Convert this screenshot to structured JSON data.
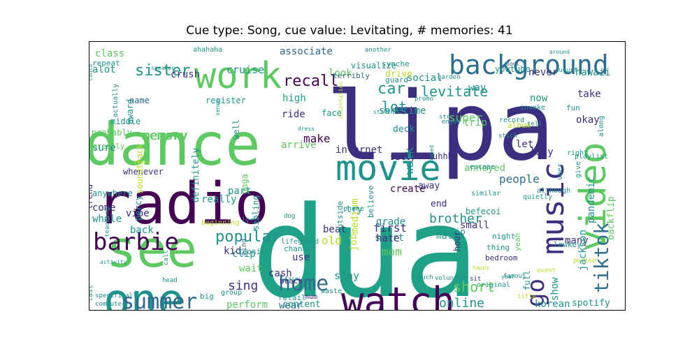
{
  "title": "Cue type: Song, cue value: Levitating, # memories: 41",
  "palette": {
    "darkpurple": "#440154",
    "indigo": "#3b2f7f",
    "blue": "#31688e",
    "steel": "#2e6e8e",
    "teal": "#21918c",
    "green": "#1fa187",
    "lightgreen": "#5ec962",
    "lime": "#b5de2b",
    "yellow": "#fde725"
  },
  "words": [
    {
      "text": "dua",
      "c": "green"
    },
    {
      "text": "lipa",
      "c": "indigo"
    },
    {
      "text": "dance",
      "c": "lightgreen"
    },
    {
      "text": "radio",
      "c": "darkpurple"
    },
    {
      "text": "see",
      "c": "lightgreen"
    },
    {
      "text": "one",
      "c": "teal"
    },
    {
      "text": "movie",
      "c": "teal"
    },
    {
      "text": "watch",
      "c": "darkpurple"
    },
    {
      "text": "music",
      "c": "indigo"
    },
    {
      "text": "video",
      "c": "lightgreen"
    },
    {
      "text": "work",
      "c": "lightgreen"
    },
    {
      "text": "background",
      "c": "steel"
    },
    {
      "text": "barbie",
      "c": "darkpurple"
    },
    {
      "text": "summer",
      "c": "blue"
    },
    {
      "text": "home",
      "c": "blue"
    },
    {
      "text": "tiktok",
      "c": "steel"
    },
    {
      "text": "go",
      "c": "indigo"
    },
    {
      "text": "popular",
      "c": "teal"
    },
    {
      "text": "sister",
      "c": "teal"
    },
    {
      "text": "recall",
      "c": "darkpurple"
    },
    {
      "text": "levitate",
      "c": "teal"
    },
    {
      "text": "car",
      "c": "teal"
    },
    {
      "text": "lot",
      "c": "teal"
    },
    {
      "text": "memory",
      "c": "lightgreen"
    },
    {
      "text": "sing",
      "c": "indigo"
    },
    {
      "text": "short",
      "c": "lightgreen"
    },
    {
      "text": "online",
      "c": "teal"
    },
    {
      "text": "brother",
      "c": "teal"
    },
    {
      "text": "make",
      "c": "darkpurple"
    },
    {
      "text": "walk",
      "c": "teal"
    },
    {
      "text": "people",
      "c": "steel"
    },
    {
      "text": "first",
      "c": "indigo"
    },
    {
      "text": "super",
      "c": "lightgreen"
    },
    {
      "text": "cruise",
      "c": "teal"
    },
    {
      "text": "associate",
      "c": "blue"
    },
    {
      "text": "crush",
      "c": "indigo"
    },
    {
      "text": "high",
      "c": "green"
    },
    {
      "text": "ride",
      "c": "indigo"
    },
    {
      "text": "internet",
      "c": "indigo"
    },
    {
      "text": "create",
      "c": "darkpurple"
    },
    {
      "text": "grade",
      "c": "teal"
    },
    {
      "text": "start",
      "c": "teal"
    },
    {
      "text": "mom",
      "c": "lightgreen"
    },
    {
      "text": "old",
      "c": "lime"
    },
    {
      "text": "beat",
      "c": "indigo"
    },
    {
      "text": "stay",
      "c": "teal"
    },
    {
      "text": "wear",
      "c": "blue"
    },
    {
      "text": "perform",
      "c": "lightgreen"
    },
    {
      "text": "class",
      "c": "lightgreen"
    },
    {
      "text": "social",
      "c": "teal"
    },
    {
      "text": "look",
      "c": "lightgreen"
    },
    {
      "text": "sometime",
      "c": "teal"
    },
    {
      "text": "way",
      "c": "teal"
    },
    {
      "text": "let",
      "c": "indigo"
    },
    {
      "text": "trip",
      "c": "lightgreen"
    },
    {
      "text": "lady",
      "c": "indigo"
    },
    {
      "text": "never",
      "c": "indigo"
    },
    {
      "text": "hawaii",
      "c": "teal"
    },
    {
      "text": "now",
      "c": "teal"
    },
    {
      "text": "alot",
      "c": "teal"
    },
    {
      "text": "sure",
      "c": "teal"
    },
    {
      "text": "come",
      "c": "indigo"
    },
    {
      "text": "whole",
      "c": "teal"
    },
    {
      "text": "back",
      "c": "teal"
    },
    {
      "text": "part",
      "c": "teal"
    },
    {
      "text": "really",
      "c": "teal"
    },
    {
      "text": "clip",
      "c": "teal"
    },
    {
      "text": "use",
      "c": "indigo"
    },
    {
      "text": "hate",
      "c": "indigo"
    },
    {
      "text": "many",
      "c": "indigo"
    },
    {
      "text": "show",
      "c": "teal"
    },
    {
      "text": "small",
      "c": "indigo"
    },
    {
      "text": "korean",
      "c": "teal"
    },
    {
      "text": "spotify",
      "c": "teal"
    },
    {
      "text": "okay",
      "c": "indigo"
    },
    {
      "text": "take",
      "c": "indigo"
    },
    {
      "text": "backflip",
      "c": "lightgreen"
    },
    {
      "text": "pandemic",
      "c": "teal"
    },
    {
      "text": "jackson",
      "c": "teal"
    },
    {
      "text": "annoyed",
      "c": "lightgreen"
    },
    {
      "text": "vibe",
      "c": "indigo"
    },
    {
      "text": "cash",
      "c": "indigo"
    },
    {
      "text": "wait",
      "c": "lightgreen"
    },
    {
      "text": "kid",
      "c": "indigo"
    },
    {
      "text": "memory",
      "c": "lightgreen"
    },
    {
      "text": "content",
      "c": "teal"
    },
    {
      "text": "drive",
      "c": "lime"
    },
    {
      "text": "youtube",
      "c": "teal"
    },
    {
      "text": "definitely",
      "c": "teal"
    },
    {
      "text": "medium",
      "c": "lime"
    },
    {
      "text": "job",
      "c": "lime"
    },
    {
      "text": "match",
      "c": "teal"
    },
    {
      "text": "end",
      "c": "indigo"
    },
    {
      "text": "away",
      "c": "indigo"
    },
    {
      "text": "lip",
      "c": "teal"
    },
    {
      "text": "try",
      "c": "teal"
    },
    {
      "text": "befecoi",
      "c": "teal"
    },
    {
      "text": "uhhh",
      "c": "indigo"
    },
    {
      "text": "silly",
      "c": "indigo"
    },
    {
      "text": "deck",
      "c": "teal"
    },
    {
      "text": "face",
      "c": "teal"
    },
    {
      "text": "arrive",
      "c": "lightgreen"
    },
    {
      "text": "gaga",
      "c": "lightgreen"
    },
    {
      "text": "sibling",
      "c": "teal"
    },
    {
      "text": "middle",
      "c": "teal"
    },
    {
      "text": "award",
      "c": "teal"
    },
    {
      "text": "register",
      "c": "teal"
    },
    {
      "text": "well",
      "c": "teal"
    },
    {
      "text": "probably",
      "c": "lightgreen"
    },
    {
      "text": "greatly",
      "c": "lightgreen"
    },
    {
      "text": "whenever",
      "c": "indigo"
    },
    {
      "text": "soundtrack",
      "c": "lime"
    },
    {
      "text": "trend",
      "c": "indigo"
    },
    {
      "text": "anywhere",
      "c": "teal"
    },
    {
      "text": "percy",
      "c": "teal"
    },
    {
      "text": "name",
      "c": "blue"
    },
    {
      "text": "terribly",
      "c": "blue"
    },
    {
      "text": "visualize",
      "c": "teal"
    },
    {
      "text": "synche",
      "c": "teal"
    },
    {
      "text": "guard",
      "c": "teal"
    },
    {
      "text": "pool",
      "c": "blue"
    },
    {
      "text": "repeat",
      "c": "teal"
    },
    {
      "text": "ahahaha",
      "c": "teal"
    },
    {
      "text": "outside",
      "c": "teal"
    },
    {
      "text": "believe",
      "c": "teal"
    },
    {
      "text": "mind",
      "c": "blue"
    },
    {
      "text": "iconic",
      "c": "teal"
    },
    {
      "text": "channel",
      "c": "teal"
    },
    {
      "text": "lifeguard",
      "c": "teal"
    },
    {
      "text": "night",
      "c": "teal"
    },
    {
      "text": "bedroom",
      "c": "indigo"
    },
    {
      "text": "thing",
      "c": "teal"
    },
    {
      "text": "hour",
      "c": "indigo"
    },
    {
      "text": "yeah",
      "c": "lightgreen"
    },
    {
      "text": "lowkey",
      "c": "teal"
    },
    {
      "text": "full",
      "c": "teal"
    },
    {
      "text": "retail",
      "c": "teal"
    },
    {
      "text": "beach",
      "c": "indigo"
    },
    {
      "text": "waste",
      "c": "teal"
    },
    {
      "text": "mum",
      "c": "indigo"
    },
    {
      "text": "sit",
      "c": "indigo"
    },
    {
      "text": "much",
      "c": "teal"
    },
    {
      "text": "original",
      "c": "teal"
    },
    {
      "text": "volunteer",
      "c": "teal"
    },
    {
      "text": "famous",
      "c": "teal"
    },
    {
      "text": "last",
      "c": "teal"
    },
    {
      "text": "specifically",
      "c": "teal"
    },
    {
      "text": "computer",
      "c": "teal"
    },
    {
      "text": "big",
      "c": "teal"
    },
    {
      "text": "group",
      "c": "teal"
    },
    {
      "text": "call",
      "c": "teal"
    },
    {
      "text": "activity",
      "c": "teal"
    },
    {
      "text": "teaching",
      "c": "teal"
    },
    {
      "text": "beginning",
      "c": "lime"
    },
    {
      "text": "lyric",
      "c": "teal"
    },
    {
      "text": "dog",
      "c": "teal"
    },
    {
      "text": "phone",
      "c": "teal"
    },
    {
      "text": "similar",
      "c": "teal"
    },
    {
      "text": "may",
      "c": "teal"
    },
    {
      "text": "record",
      "c": "teal"
    },
    {
      "text": "fun",
      "c": "teal"
    },
    {
      "text": "invoke",
      "c": "teal"
    },
    {
      "text": "album",
      "c": "lime"
    },
    {
      "text": "stick",
      "c": "teal"
    },
    {
      "text": "tell",
      "c": "teal"
    },
    {
      "text": "right",
      "c": "teal"
    },
    {
      "text": "playlist",
      "c": "teal"
    },
    {
      "text": "along",
      "c": "teal"
    },
    {
      "text": "escape",
      "c": "teal"
    },
    {
      "text": "quietly",
      "c": "teal"
    },
    {
      "text": "although",
      "c": "teal"
    },
    {
      "text": "uber",
      "c": "teal"
    },
    {
      "text": "give",
      "c": "teal"
    },
    {
      "text": "actually",
      "c": "teal"
    },
    {
      "text": "speaker",
      "c": "teal"
    },
    {
      "text": "could",
      "c": "teal"
    },
    {
      "text": "enjoy",
      "c": "teal"
    },
    {
      "text": "stc",
      "c": "teal"
    },
    {
      "text": "promo",
      "c": "teal"
    },
    {
      "text": "garden",
      "c": "teal"
    },
    {
      "text": "august",
      "c": "teal"
    },
    {
      "text": "around",
      "c": "teal"
    },
    {
      "text": "another",
      "c": "teal"
    },
    {
      "text": "still",
      "c": "teal"
    },
    {
      "text": "orientation",
      "c": "lime"
    },
    {
      "text": "venue",
      "c": "teal"
    },
    {
      "text": "dress",
      "c": "teal"
    },
    {
      "text": "hyped",
      "c": "teal"
    },
    {
      "text": "year",
      "c": "teal"
    },
    {
      "text": "happy",
      "c": "lime"
    },
    {
      "text": "period",
      "c": "lime"
    },
    {
      "text": "event",
      "c": "lime"
    },
    {
      "text": "title",
      "c": "lime"
    },
    {
      "text": "head",
      "c": "teal"
    },
    {
      "text": "every",
      "c": "lime"
    },
    {
      "text": "fair",
      "c": "teal"
    },
    {
      "text": "everyone",
      "c": "lime"
    },
    {
      "text": "blue",
      "c": "lime"
    },
    {
      "text": "green",
      "c": "lime"
    },
    {
      "text": "vi",
      "c": "teal"
    }
  ]
}
